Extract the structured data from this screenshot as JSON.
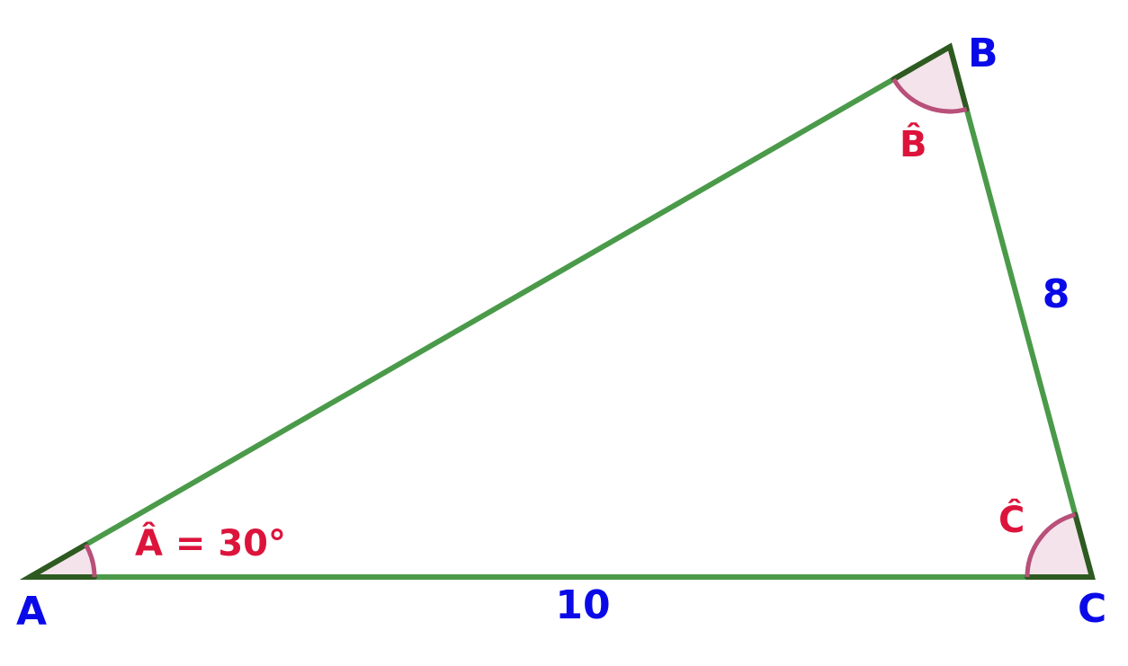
{
  "vertices": {
    "A": "A",
    "B": "B",
    "C": "C"
  },
  "sides": {
    "AC": "10",
    "BC": "8"
  },
  "angles": {
    "A": "Â = 30°",
    "B": "B̂",
    "C": "Ĉ"
  }
}
